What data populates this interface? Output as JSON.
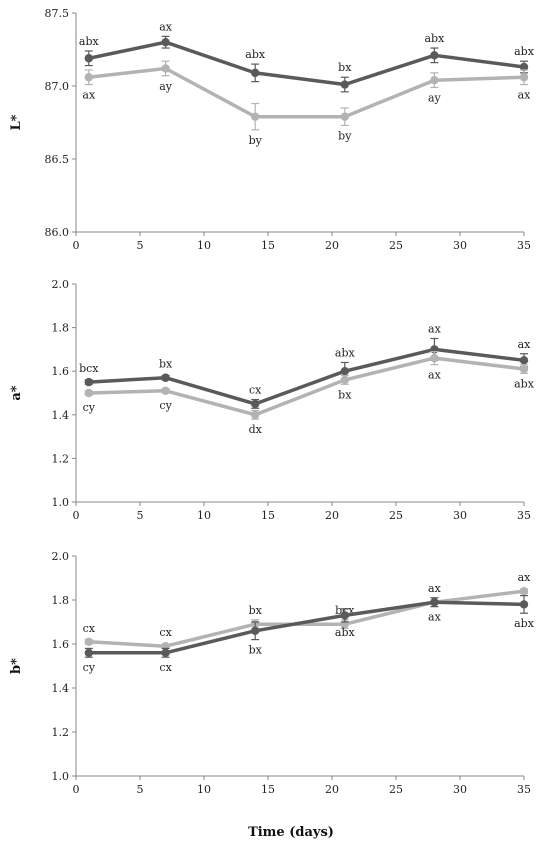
{
  "chart_data": [
    {
      "type": "line",
      "title": "",
      "xlabel": "Time (days)",
      "ylabel": "L*",
      "xlim": [
        0,
        35
      ],
      "ylim": [
        86.0,
        87.5
      ],
      "x_ticks": [
        0,
        5,
        10,
        15,
        20,
        25,
        30,
        35
      ],
      "y_ticks": [
        86.0,
        86.5,
        87.0,
        87.5
      ],
      "y_decimals": 1,
      "grid": false,
      "x": [
        1,
        7,
        14,
        21,
        28,
        35
      ],
      "series": [
        {
          "color": "#5a5a5a",
          "values": [
            87.19,
            87.3,
            87.09,
            87.01,
            87.21,
            87.13
          ],
          "errors": [
            0.05,
            0.04,
            0.06,
            0.05,
            0.05,
            0.04
          ],
          "letters": [
            "abx",
            "ax",
            "abx",
            "bx",
            "abx",
            "abx"
          ],
          "letter_position": "above"
        },
        {
          "color": "#b3b3b3",
          "values": [
            87.06,
            87.12,
            86.79,
            86.79,
            87.04,
            87.06
          ],
          "errors": [
            0.05,
            0.05,
            0.09,
            0.06,
            0.05,
            0.05
          ],
          "letters": [
            "ax",
            "ay",
            "by",
            "by",
            "ay",
            "ax"
          ],
          "letter_position": "below"
        }
      ]
    },
    {
      "type": "line",
      "title": "",
      "xlabel": "",
      "ylabel": "a*",
      "xlim": [
        0,
        35
      ],
      "ylim": [
        1.0,
        2.0
      ],
      "x_ticks": [
        0,
        5,
        10,
        15,
        20,
        25,
        30,
        35
      ],
      "y_ticks": [
        1.0,
        1.2,
        1.4,
        1.6,
        1.8,
        2.0
      ],
      "y_decimals": 1,
      "grid": false,
      "x": [
        1,
        7,
        14,
        21,
        28,
        35
      ],
      "series": [
        {
          "color": "#5a5a5a",
          "values": [
            1.55,
            1.57,
            1.45,
            1.6,
            1.7,
            1.65
          ],
          "errors": [
            0.01,
            0.01,
            0.02,
            0.04,
            0.05,
            0.03
          ],
          "letters": [
            "bcx",
            "bx",
            "cx",
            "abx",
            "ax",
            "ax"
          ],
          "letter_position": "above"
        },
        {
          "color": "#b3b3b3",
          "values": [
            1.5,
            1.51,
            1.4,
            1.56,
            1.66,
            1.61
          ],
          "errors": [
            0.01,
            0.01,
            0.02,
            0.02,
            0.03,
            0.02
          ],
          "letters": [
            "cy",
            "cy",
            "dx",
            "bx",
            "ax",
            "abx"
          ],
          "letter_position": "below"
        }
      ]
    },
    {
      "type": "line",
      "title": "",
      "xlabel": "",
      "ylabel": "b*",
      "xlim": [
        0,
        35
      ],
      "ylim": [
        1.0,
        2.0
      ],
      "x_ticks": [
        0,
        5,
        10,
        15,
        20,
        25,
        30,
        35
      ],
      "y_ticks": [
        1.0,
        1.2,
        1.4,
        1.6,
        1.8,
        2.0
      ],
      "y_decimals": 1,
      "grid": false,
      "x": [
        1,
        7,
        14,
        21,
        28,
        35
      ],
      "series": [
        {
          "color": "#b3b3b3",
          "values": [
            1.61,
            1.59,
            1.69,
            1.69,
            1.79,
            1.84
          ],
          "errors": [
            0.01,
            0.01,
            0.02,
            0.02,
            0.02,
            0.01
          ],
          "letters": [
            "cx",
            "cx",
            "bx",
            "bcx",
            "ax",
            "ax"
          ],
          "letter_position": "above"
        },
        {
          "color": "#5a5a5a",
          "values": [
            1.56,
            1.56,
            1.66,
            1.73,
            1.79,
            1.78
          ],
          "errors": [
            0.02,
            0.02,
            0.04,
            0.03,
            0.02,
            0.04
          ],
          "letters": [
            "cy",
            "cx",
            "bx",
            "abx",
            "ax",
            "abx"
          ],
          "letter_position": "below"
        }
      ]
    }
  ]
}
